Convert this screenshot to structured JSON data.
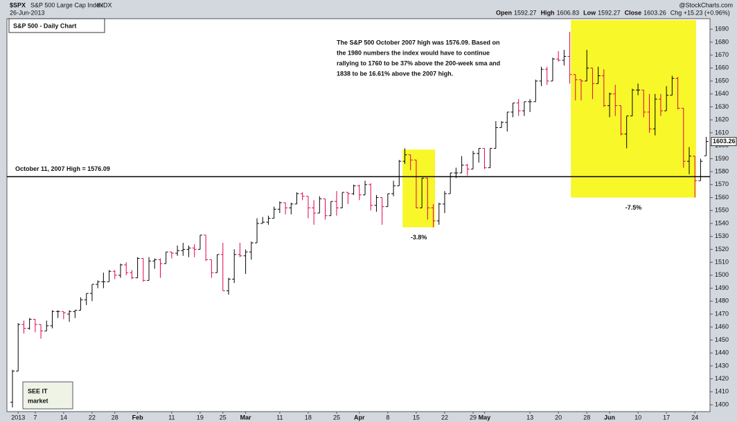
{
  "header": {
    "symbol": "$SPX",
    "name": "S&P 500 Large Cap Index",
    "exchange": "INDX",
    "date": "26-Jun-2013",
    "source": "@StockCharts.com",
    "open_label": "Open",
    "high_label": "High",
    "low_label": "Low",
    "close_label": "Close",
    "change": "Chg +15.23 (+0.96%)"
  },
  "chart_data": {
    "type": "ohlc",
    "title": "S&P 500 - Daily Chart",
    "annotation": [
      "The S&P 500 October 2007 high was 1576.09. Based on",
      "the 1980 numbers the index would have to continue",
      "rallying to 1760 to be 37% above the 200-week sma and",
      "1838 to be 16.61% above the 2007 high."
    ],
    "reference_line": {
      "value": 1576.09,
      "label": "October 11, 2007 High = 1576.09"
    },
    "highlights": [
      {
        "x": [
          68.6,
          74.3
        ],
        "y": [
          1537,
          1597
        ],
        "label": "-3.8%"
      },
      {
        "x": [
          98.2,
          120.2
        ],
        "y": [
          1560,
          1697
        ],
        "label": "-7.5%"
      }
    ],
    "up_color": "#000000",
    "down_color": "#e0004d",
    "highlight_color": "#f7f72a",
    "ohlc": {
      "open": [
        1402,
        1426,
        1462,
        1459,
        1466,
        1462,
        1457,
        1461,
        1472,
        1472,
        1470,
        1472,
        1473,
        1481,
        1486,
        1493,
        1495,
        1495,
        1503,
        1500,
        1508,
        1502,
        1498,
        1513,
        1496,
        1511,
        1512,
        1509,
        1518,
        1517,
        1519,
        1520,
        1521,
        1520,
        1531,
        1512,
        1502,
        1516,
        1488,
        1497,
        1516,
        1515,
        1518,
        1525,
        1540,
        1541,
        1544,
        1551,
        1556,
        1552,
        1555,
        1563,
        1561,
        1552,
        1548,
        1559,
        1546,
        1557,
        1552,
        1564,
        1563,
        1569,
        1562,
        1570,
        1554,
        1560,
        1553,
        1563,
        1569,
        1588,
        1593,
        1589,
        1552,
        1575,
        1552,
        1542,
        1555,
        1563,
        1579,
        1579,
        1585,
        1582,
        1594,
        1598,
        1583,
        1598,
        1614,
        1618,
        1626,
        1633,
        1627,
        1634,
        1634,
        1650,
        1659,
        1650,
        1667,
        1666,
        1669,
        1655,
        1651,
        1650,
        1660,
        1648,
        1654,
        1631,
        1640,
        1631,
        1609,
        1623,
        1643,
        1643,
        1626,
        1613,
        1636,
        1627,
        1639,
        1652,
        1629,
        1588,
        1592,
        1573,
        1592.27
      ],
      "high": [
        1427,
        1463,
        1465,
        1467,
        1466,
        1462,
        1465,
        1473,
        1473,
        1472,
        1473,
        1473,
        1483,
        1486,
        1493,
        1496,
        1502,
        1504,
        1504,
        1509,
        1510,
        1504,
        1514,
        1513,
        1514,
        1513,
        1513,
        1518,
        1518,
        1523,
        1525,
        1523,
        1524,
        1531,
        1531,
        1512,
        1516,
        1525,
        1498,
        1520,
        1525,
        1520,
        1526,
        1544,
        1545,
        1546,
        1553,
        1557,
        1556,
        1556,
        1564,
        1564,
        1561,
        1558,
        1561,
        1559,
        1557,
        1565,
        1564,
        1564,
        1570,
        1570,
        1573,
        1571,
        1562,
        1560,
        1563,
        1573,
        1589,
        1598,
        1593,
        1589,
        1575,
        1575,
        1555,
        1556,
        1565,
        1579,
        1583,
        1592,
        1586,
        1596,
        1598,
        1598,
        1598,
        1619,
        1619,
        1626,
        1633,
        1636,
        1634,
        1636,
        1651,
        1661,
        1661,
        1668,
        1673,
        1674,
        1688,
        1655,
        1651,
        1674,
        1660,
        1661,
        1659,
        1641,
        1647,
        1631,
        1623,
        1644,
        1648,
        1643,
        1640,
        1640,
        1640,
        1646,
        1654,
        1653,
        1629,
        1599,
        1592,
        1590,
        1606.83
      ],
      "low": [
        1398,
        1426,
        1455,
        1458,
        1456,
        1451,
        1457,
        1459,
        1467,
        1466,
        1464,
        1467,
        1473,
        1477,
        1480,
        1490,
        1490,
        1495,
        1497,
        1498,
        1500,
        1497,
        1498,
        1495,
        1496,
        1505,
        1498,
        1509,
        1513,
        1515,
        1515,
        1514,
        1514,
        1520,
        1511,
        1498,
        1502,
        1488,
        1485,
        1494,
        1514,
        1501,
        1512,
        1525,
        1540,
        1539,
        1544,
        1548,
        1547,
        1547,
        1555,
        1558,
        1544,
        1539,
        1548,
        1543,
        1546,
        1546,
        1552,
        1555,
        1562,
        1558,
        1562,
        1550,
        1549,
        1539,
        1553,
        1561,
        1569,
        1586,
        1581,
        1552,
        1552,
        1543,
        1537,
        1539,
        1548,
        1563,
        1575,
        1579,
        1577,
        1582,
        1587,
        1582,
        1583,
        1598,
        1614,
        1611,
        1622,
        1623,
        1623,
        1626,
        1634,
        1646,
        1647,
        1650,
        1665,
        1662,
        1648,
        1635,
        1635,
        1650,
        1636,
        1648,
        1630,
        1622,
        1623,
        1608,
        1598,
        1623,
        1639,
        1622,
        1610,
        1608,
        1623,
        1627,
        1639,
        1628,
        1583,
        1578,
        1560,
        1573,
        1592.27
      ],
      "close": [
        1426,
        1462,
        1459,
        1466,
        1462,
        1457,
        1461,
        1472,
        1472,
        1471,
        1472,
        1473,
        1481,
        1486,
        1493,
        1495,
        1495,
        1503,
        1500,
        1508,
        1502,
        1498,
        1513,
        1496,
        1511,
        1512,
        1509,
        1518,
        1517,
        1519,
        1520,
        1521,
        1520,
        1531,
        1512,
        1502,
        1516,
        1488,
        1497,
        1516,
        1515,
        1518,
        1525,
        1540,
        1541,
        1544,
        1551,
        1556,
        1552,
        1555,
        1563,
        1561,
        1552,
        1548,
        1559,
        1546,
        1557,
        1552,
        1564,
        1563,
        1569,
        1562,
        1570,
        1554,
        1560,
        1553,
        1563,
        1569,
        1588,
        1593,
        1589,
        1552,
        1575,
        1552,
        1542,
        1555,
        1563,
        1579,
        1579,
        1585,
        1582,
        1594,
        1598,
        1583,
        1598,
        1614,
        1618,
        1626,
        1633,
        1627,
        1634,
        1634,
        1650,
        1659,
        1650,
        1667,
        1666,
        1669,
        1655,
        1651,
        1650,
        1660,
        1648,
        1654,
        1631,
        1640,
        1631,
        1609,
        1623,
        1643,
        1643,
        1626,
        1613,
        1636,
        1627,
        1639,
        1652,
        1629,
        1588,
        1592,
        1573,
        1588,
        1603.26
      ]
    },
    "ylim": [
      1394.7,
      1698.1
    ],
    "yticks": [
      1400,
      1410,
      1420,
      1430,
      1440,
      1450,
      1460,
      1470,
      1480,
      1490,
      1500,
      1510,
      1520,
      1530,
      1540,
      1550,
      1560,
      1570,
      1580,
      1590,
      1600,
      1610,
      1620,
      1630,
      1640,
      1650,
      1660,
      1670,
      1680,
      1690
    ],
    "xlim": [
      -0.5,
      123
    ],
    "xticks": [
      {
        "value": 1,
        "label": "2013"
      },
      {
        "value": 4,
        "label": "7"
      },
      {
        "value": 9,
        "label": "14"
      },
      {
        "value": 14,
        "label": "22"
      },
      {
        "value": 18,
        "label": "28"
      },
      {
        "value": 22,
        "label": "Feb"
      },
      {
        "value": 28,
        "label": "11"
      },
      {
        "value": 33,
        "label": "19"
      },
      {
        "value": 37,
        "label": "25"
      },
      {
        "value": 41,
        "label": "Mar"
      },
      {
        "value": 47,
        "label": "11"
      },
      {
        "value": 52,
        "label": "18"
      },
      {
        "value": 57,
        "label": "25"
      },
      {
        "value": 61,
        "label": "Apr"
      },
      {
        "value": 66,
        "label": "8"
      },
      {
        "value": 71,
        "label": "15"
      },
      {
        "value": 76,
        "label": "22"
      },
      {
        "value": 81,
        "label": "29"
      },
      {
        "value": 83,
        "label": "May"
      },
      {
        "value": 91,
        "label": "13"
      },
      {
        "value": 96,
        "label": "20"
      },
      {
        "value": 101,
        "label": "28"
      },
      {
        "value": 105,
        "label": "Jun"
      },
      {
        "value": 110,
        "label": "10"
      },
      {
        "value": 115,
        "label": "17"
      },
      {
        "value": 120,
        "label": "24"
      }
    ]
  },
  "logo": [
    "SEE IT",
    "market"
  ]
}
